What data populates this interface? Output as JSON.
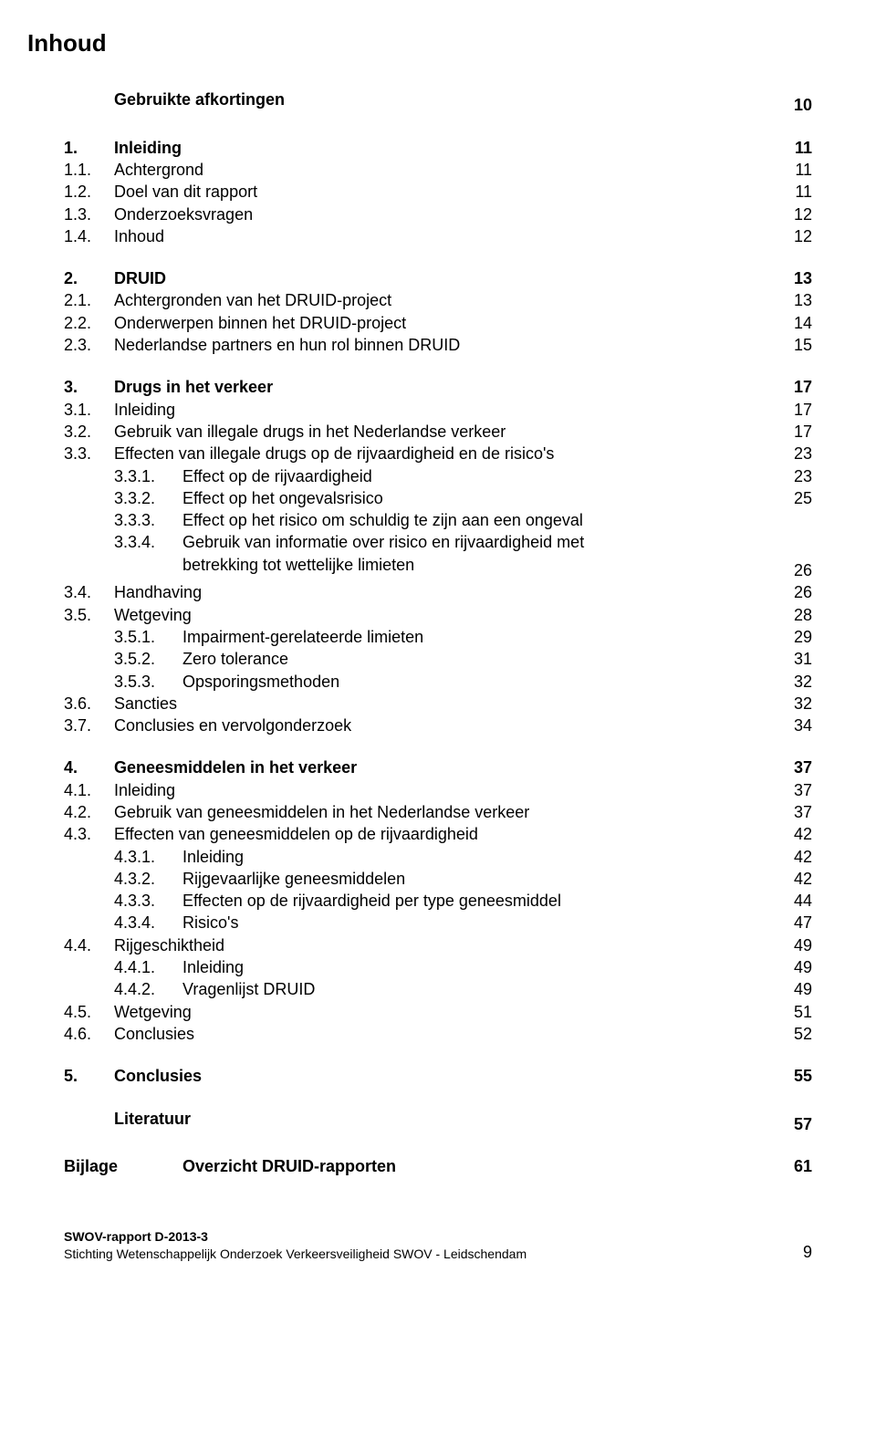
{
  "page_title": "Inhoud",
  "sections": {
    "s0": {
      "title": "Gebruikte afkortingen",
      "page": "10"
    },
    "s1": {
      "num": "1.",
      "title": "Inleiding",
      "page": "11",
      "items": [
        {
          "num": "1.1.",
          "text": "Achtergrond",
          "page": "11"
        },
        {
          "num": "1.2.",
          "text": "Doel van dit rapport",
          "page": "11"
        },
        {
          "num": "1.3.",
          "text": "Onderzoeksvragen",
          "page": "12"
        },
        {
          "num": "1.4.",
          "text": "Inhoud",
          "page": "12"
        }
      ]
    },
    "s2": {
      "num": "2.",
      "title": "DRUID",
      "page": "13",
      "items": [
        {
          "num": "2.1.",
          "text": "Achtergronden van het DRUID-project",
          "page": "13"
        },
        {
          "num": "2.2.",
          "text": "Onderwerpen binnen het DRUID-project",
          "page": "14"
        },
        {
          "num": "2.3.",
          "text": "Nederlandse partners en hun rol binnen DRUID",
          "page": "15"
        }
      ]
    },
    "s3": {
      "num": "3.",
      "title": "Drugs in het verkeer",
      "page": "17",
      "items": [
        {
          "num": "3.1.",
          "text": "Inleiding",
          "page": "17"
        },
        {
          "num": "3.2.",
          "text": "Gebruik van illegale drugs in het Nederlandse verkeer",
          "page": "17"
        },
        {
          "num": "3.3.",
          "text": "Effecten van illegale drugs op de rijvaardigheid en de risico's",
          "page": "23"
        }
      ],
      "sub33": [
        {
          "num": "3.3.1.",
          "text": "Effect op de rijvaardigheid",
          "page": "23"
        },
        {
          "num": "3.3.2.",
          "text": "Effect op het ongevalsrisico",
          "page": "25"
        },
        {
          "num": "3.3.3.",
          "text": "Effect op het risico om schuldig te zijn aan een ongeval",
          "page": "25"
        },
        {
          "num": "3.3.4.",
          "text_a": "Gebruik van informatie over risico en rijvaardigheid met",
          "text_b": "betrekking tot wettelijke limieten",
          "page": "26"
        }
      ],
      "i34": {
        "num": "3.4.",
        "text": "Handhaving",
        "page": "26"
      },
      "i35": {
        "num": "3.5.",
        "text": "Wetgeving",
        "page": "28"
      },
      "sub35": [
        {
          "num": "3.5.1.",
          "text": "Impairment-gerelateerde limieten",
          "page": "29"
        },
        {
          "num": "3.5.2.",
          "text": "Zero tolerance",
          "page": "31"
        },
        {
          "num": "3.5.3.",
          "text": "Opsporingsmethoden",
          "page": "32"
        }
      ],
      "i36": {
        "num": "3.6.",
        "text": "Sancties",
        "page": "32"
      },
      "i37": {
        "num": "3.7.",
        "text": "Conclusies en vervolgonderzoek",
        "page": "34"
      }
    },
    "s4": {
      "num": "4.",
      "title": "Geneesmiddelen in het verkeer",
      "page": "37",
      "items": [
        {
          "num": "4.1.",
          "text": "Inleiding",
          "page": "37"
        },
        {
          "num": "4.2.",
          "text": "Gebruik van geneesmiddelen in het Nederlandse verkeer",
          "page": "37"
        },
        {
          "num": "4.3.",
          "text": "Effecten van geneesmiddelen op de rijvaardigheid",
          "page": "42"
        }
      ],
      "sub43": [
        {
          "num": "4.3.1.",
          "text": "Inleiding",
          "page": "42"
        },
        {
          "num": "4.3.2.",
          "text": "Rijgevaarlijke geneesmiddelen",
          "page": "42"
        },
        {
          "num": "4.3.3.",
          "text": "Effecten op de rijvaardigheid per type geneesmiddel",
          "page": "44"
        },
        {
          "num": "4.3.4.",
          "text": "Risico's",
          "page": "47"
        }
      ],
      "i44": {
        "num": "4.4.",
        "text": "Rijgeschiktheid",
        "page": "49"
      },
      "sub44": [
        {
          "num": "4.4.1.",
          "text": "Inleiding",
          "page": "49"
        },
        {
          "num": "4.4.2.",
          "text": "Vragenlijst DRUID",
          "page": "49"
        }
      ],
      "i45": {
        "num": "4.5.",
        "text": "Wetgeving",
        "page": "51"
      },
      "i46": {
        "num": "4.6.",
        "text": "Conclusies",
        "page": "52"
      }
    },
    "s5": {
      "num": "5.",
      "title": "Conclusies",
      "page": "55"
    },
    "lit": {
      "title": "Literatuur",
      "page": "57"
    },
    "bijlage": {
      "label": "Bijlage",
      "title": "Overzicht DRUID-rapporten",
      "page": "61"
    }
  },
  "footer": {
    "line1": "SWOV-rapport D-2013-3",
    "line2": "Stichting Wetenschappelijk Onderzoek Verkeersveiligheid SWOV - Leidschendam",
    "page_number": "9"
  }
}
